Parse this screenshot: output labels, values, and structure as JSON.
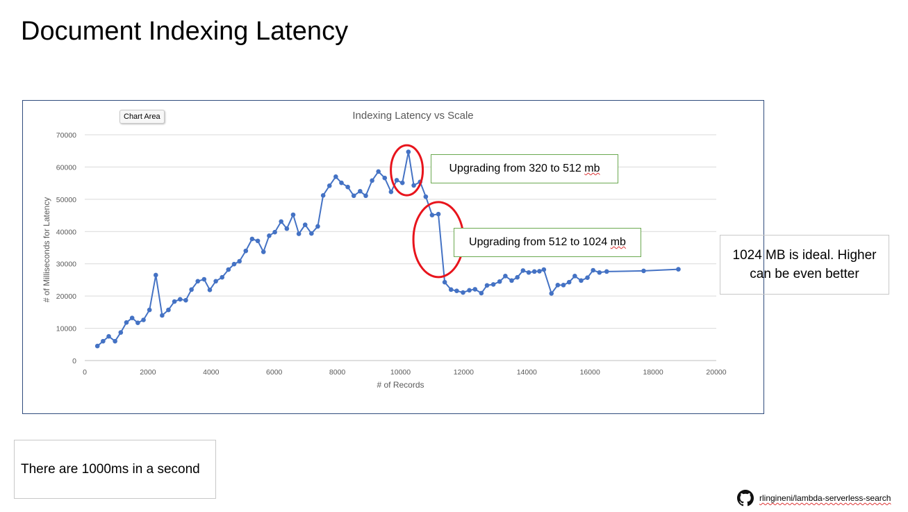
{
  "slide": {
    "title": "Document Indexing Latency",
    "tooltip_label": "Chart Area",
    "callout_upgrade_1_prefix": "Upgrading from 320 to 512 ",
    "callout_upgrade_1_unit": "mb",
    "callout_upgrade_2_prefix": "Upgrading from 512 to 1024 ",
    "callout_upgrade_2_unit": "mb",
    "note_ideal_line1": "1024 MB is ideal. Higher",
    "note_ideal_line2": "can be even better",
    "note_seconds": "There are 1000ms in a second",
    "repo_label": "rlingineni/lambda-serverless-search",
    "github_icon": "github-icon"
  },
  "colors": {
    "series": "#4472c4",
    "highlight": "#e8141c",
    "gridline": "#d9d9d9",
    "callout_border": "#6aa84f"
  },
  "chart_data": {
    "type": "line",
    "title": "Indexing Latency vs Scale",
    "xlabel": "# of Records",
    "ylabel": "# of Milliseconds for Latency",
    "xlim": [
      0,
      20000
    ],
    "ylim": [
      0,
      70000
    ],
    "xticks": [
      0,
      2000,
      4000,
      6000,
      8000,
      10000,
      12000,
      14000,
      16000,
      18000,
      20000
    ],
    "yticks": [
      0,
      10000,
      20000,
      30000,
      40000,
      50000,
      60000,
      70000
    ],
    "grid": "horizontal",
    "legend": "none",
    "markers": true,
    "series": [
      {
        "x": [
          400,
          580,
          760,
          960,
          1140,
          1320,
          1500,
          1680,
          1860,
          2050,
          2250,
          2450,
          2650,
          2840,
          3020,
          3200,
          3380,
          3580,
          3780,
          3960,
          4150,
          4350,
          4550,
          4730,
          4900,
          5100,
          5300,
          5480,
          5660,
          5840,
          6020,
          6220,
          6400,
          6600,
          6780,
          6980,
          7180,
          7380,
          7550,
          7750,
          7950,
          8130,
          8330,
          8520,
          8720,
          8900,
          9100,
          9300,
          9500,
          9700,
          9880,
          10060,
          10250,
          10420,
          10620,
          10800,
          11000,
          11200,
          11400,
          11600,
          11780,
          11980,
          12180,
          12360,
          12560,
          12740,
          12940,
          13140,
          13320,
          13520,
          13700,
          13880,
          14060,
          14240,
          14400,
          14540,
          14780,
          14980,
          15160,
          15340,
          15520,
          15720,
          15920,
          16100,
          16300,
          16530,
          17700,
          18800
        ],
        "values": [
          4500,
          6000,
          7500,
          6000,
          8700,
          11800,
          13200,
          11700,
          12600,
          15700,
          26500,
          14000,
          15700,
          18300,
          19000,
          18700,
          22000,
          24600,
          25200,
          21900,
          24600,
          25800,
          28200,
          29900,
          30800,
          34000,
          37700,
          37100,
          33700,
          38700,
          39800,
          43100,
          40900,
          45200,
          39300,
          42100,
          39400,
          41600,
          51200,
          54200,
          57000,
          55100,
          53800,
          51100,
          52500,
          51100,
          55800,
          58600,
          56600,
          52300,
          55900,
          55100,
          64700,
          54300,
          55400,
          50800,
          45100,
          45400,
          24300,
          22000,
          21600,
          21100,
          21800,
          22100,
          20900,
          23300,
          23600,
          24500,
          26200,
          24800,
          25800,
          27900,
          27300,
          27600,
          27700,
          28200,
          20800,
          23400,
          23400,
          24300,
          26200,
          24800,
          25700,
          28000,
          27300,
          27600,
          27800,
          28300
        ]
      }
    ],
    "annotations": [
      {
        "type": "ellipse",
        "center_x": 10200,
        "center_y": 59000,
        "note": "Upgrading from 320 to 512 mb"
      },
      {
        "type": "ellipse",
        "center_x": 11200,
        "center_y": 37500,
        "note": "Upgrading from 512 to 1024 mb"
      }
    ]
  }
}
